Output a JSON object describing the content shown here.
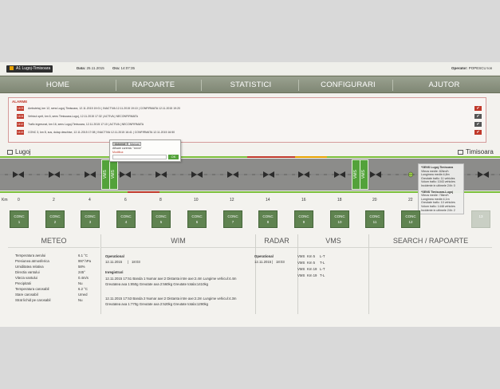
{
  "header": {
    "route": "A1 Lugoj-Timisoara",
    "data_label": "Data:",
    "data_value": "25.11.2015",
    "ora_label": "Ora:",
    "ora_value": "14:07:35",
    "operator_label": "Operator:",
    "operator_value": "POPESCU Ion"
  },
  "nav": [
    "HOME",
    "RAPOARTE",
    "STATISTICI",
    "CONFIGURARI",
    "AJUTOR"
  ],
  "alarms": {
    "title": "ALARME",
    "items": [
      {
        "code": "1403",
        "text": "Ambuteiaj, km 12, sens Lugoj-Timisoara, 12.11.2015 19:01 | INACTIVA 12.11.2015 19:10 | CONFIRMATA 12.11.2015 19:20",
        "confirmed": true
      },
      {
        "code": "1404",
        "text": "Vehicul oprit, km 6, sens Timisoara-Lugoj, 12.11.2015 17:32 | ACTIVA | NECONFIRMATA",
        "confirmed": false
      },
      {
        "code": "1412",
        "text": "Trafic ingreunat, km 16, sens Lugoj-Timisoara, 12.11.2015 17:10 | ACTIVA | NECONFIRMATA",
        "confirmed": false
      },
      {
        "code": "1413",
        "text": "CONC 3, km 8, sus, dulap deschise, 12.11.2015 17:08 | INACTIVA 12.11.2015 16:41 | CONFIRMATA 12.11.2015 16:50",
        "confirmed": true
      }
    ]
  },
  "road": {
    "left_city": "Lugoj",
    "right_city": "Timisoara",
    "km_label": "Km",
    "km_values": [
      "0",
      "2",
      "4",
      "6",
      "8",
      "10",
      "12",
      "14",
      "16",
      "18",
      "20",
      "22"
    ],
    "vms_label": "VMS"
  },
  "popup": {
    "tab1": "Automat",
    "tab2": "Manual",
    "line1": "Afisare curenta: \"xxxxx\"",
    "line2": "Modifica:",
    "ok": "OK"
  },
  "tooltip": {
    "lines1": [
      "*SENS Lugoj-Timisoara",
      "Viteza medie: 82km/h",
      "Lungimea medie:4,8m",
      "Greutate trafic: 11 vehicles",
      "Volum trafic: 1043 vehicles",
      "Incidente in ultimele 24h: 0"
    ],
    "lines2": [
      "*SENS Timisoara-Lugoj",
      "Viteza medie: 78km/h",
      "Lungimea medie:4,1m",
      "Greutate trafic: 10 vehicles",
      "Volum trafic: 1448 vehicles",
      "Incidente in ultimele 24h: 2"
    ]
  },
  "conc": {
    "label": "CONC",
    "numbers": [
      "1",
      "2",
      "3",
      "4",
      "5",
      "6",
      "7",
      "8",
      "9",
      "10",
      "11",
      "12"
    ],
    "greyed_last": "13"
  },
  "meteo": {
    "title": "METEO",
    "rows": [
      {
        "k": "Temperatura aerului",
        "v": "6.1 °C"
      },
      {
        "k": "Presiunea atmosferica",
        "v": "997 hPa"
      },
      {
        "k": "Umiditatea relativa",
        "v": "58%"
      },
      {
        "k": "Directia vantului",
        "v": "245°"
      },
      {
        "k": "Viteza vantului",
        "v": "0.4m/s"
      },
      {
        "k": "Precipitatii",
        "v": "Nu"
      },
      {
        "k": "Temperatura carosabil",
        "v": "6.2 °C"
      },
      {
        "k": "Stare carosabil",
        "v": "Umed"
      },
      {
        "k": "Strat lichid pe carosabil",
        "v": "Nu"
      }
    ]
  },
  "wim": {
    "title": "WIM",
    "operational": "Operational",
    "op_date": "12.11.2015",
    "op_time": "18:03",
    "registered": "Inregistrari",
    "records": [
      "12.11.2015 17:51 Banda 1 Numar axe:2 Distanta intre axe:2.4m Lungime vehicul:4.4m",
      "Greutatea axa 1:850g Greutate axa 2:560kg Greutate totala:1410kg",
      "12.11.2015 17:53 Banda 2 Numar axe:2 Distanta intre axe:2.2m Lungime vehicul:4.3m",
      "Greutatea axa 1:770g Greutate axa 2:520kg Greutate totala:1290kg"
    ]
  },
  "radar": {
    "title": "RADAR",
    "operational": "Operational",
    "op_date": "12.11.2015",
    "op_time": "18:03"
  },
  "vms_panel": {
    "title": "VMS",
    "rows": [
      {
        "name": "VMS",
        "km": "Km 5",
        "dir": "L-T"
      },
      {
        "name": "VMS",
        "km": "Km 5",
        "dir": "T-L"
      },
      {
        "name": "VMS",
        "km": "Km 19",
        "dir": "L-T"
      },
      {
        "name": "VMS",
        "km": "Km 19",
        "dir": "T-L"
      }
    ]
  },
  "search": {
    "title": "SEARCH / RAPOARTE"
  },
  "colors": {
    "nav": "#8b9380",
    "alarm_red": "#c0392b",
    "conc_green": "#5f8350",
    "vms_green": "#53a23a",
    "road_green": "#7bbf3a",
    "road_red": "#c0392b",
    "road_orange": "#e8a200"
  }
}
